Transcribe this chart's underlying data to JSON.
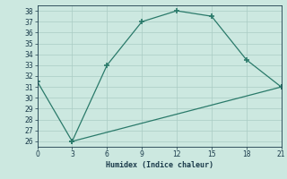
{
  "line1_x": [
    0,
    3,
    6,
    9,
    12,
    15,
    18,
    21
  ],
  "line1_y": [
    31.5,
    26,
    33,
    37,
    38,
    37.5,
    33.5,
    31
  ],
  "line2_x": [
    3,
    21
  ],
  "line2_y": [
    26,
    31
  ],
  "color": "#2a7a6a",
  "bg_color": "#cce8e0",
  "grid_color": "#aaccc4",
  "xlabel": "Humidex (Indice chaleur)",
  "xlim": [
    0,
    21
  ],
  "ylim": [
    25.5,
    38.5
  ],
  "xticks": [
    0,
    3,
    6,
    9,
    12,
    15,
    18,
    21
  ],
  "yticks": [
    26,
    27,
    28,
    29,
    30,
    31,
    32,
    33,
    34,
    35,
    36,
    37,
    38
  ],
  "font_color": "#1a3a4a"
}
